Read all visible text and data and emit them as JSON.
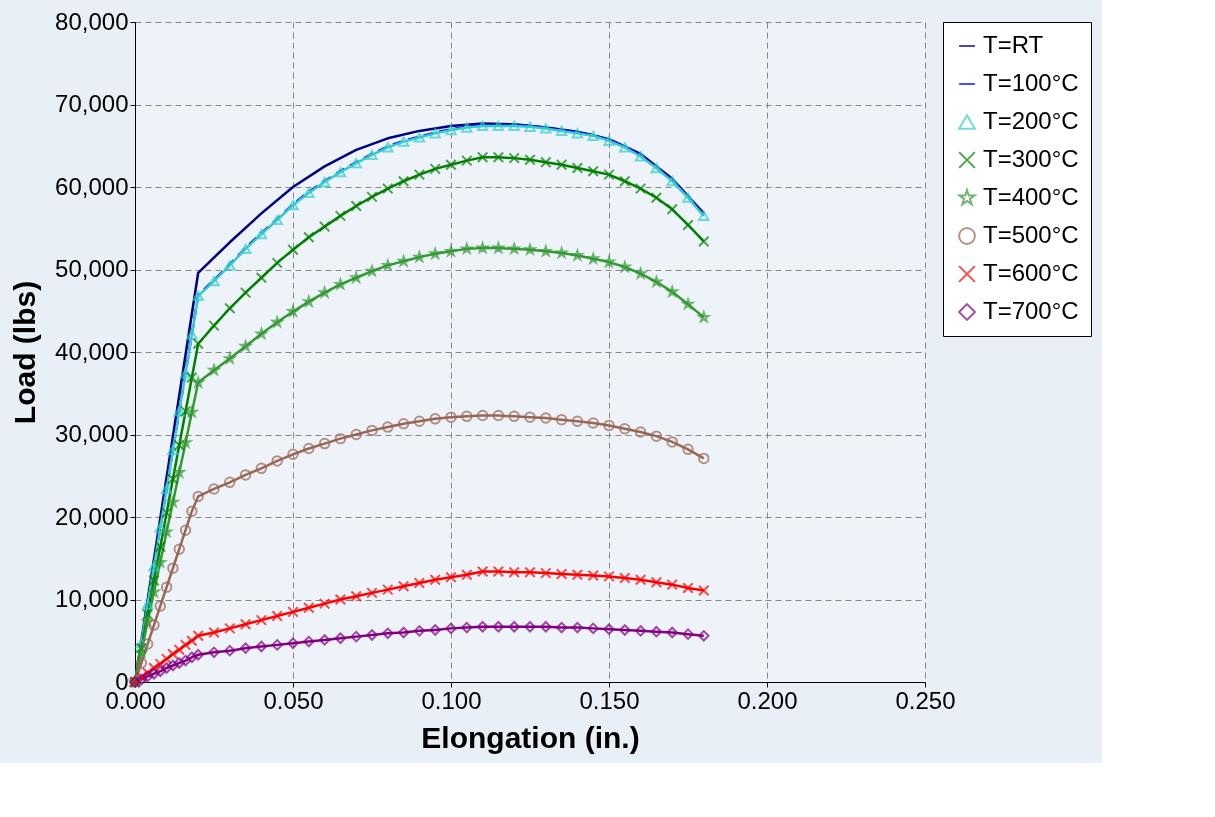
{
  "chart_data": {
    "type": "line",
    "xlabel": "Elongation (in.)",
    "ylabel": "Load (lbs)",
    "xlim": [
      0,
      0.25
    ],
    "ylim": [
      0,
      80000
    ],
    "xticks": [
      {
        "value": 0,
        "label": "0.000"
      },
      {
        "value": 0.05,
        "label": "0.050"
      },
      {
        "value": 0.1,
        "label": "0.100"
      },
      {
        "value": 0.15,
        "label": "0.150"
      },
      {
        "value": 0.2,
        "label": "0.200"
      },
      {
        "value": 0.25,
        "label": "0.250"
      }
    ],
    "yticks": [
      0,
      {
        "value": 10000,
        "label": "10,000"
      },
      {
        "value": 20000,
        "label": "20,000"
      },
      {
        "value": 30000,
        "label": "30,000"
      },
      {
        "value": 40000,
        "label": "40,000"
      },
      {
        "value": 50000,
        "label": "50,000"
      },
      {
        "value": 60000,
        "label": "60,000"
      },
      {
        "value": 70000,
        "label": "70,000"
      },
      {
        "value": 80000,
        "label": "80,000"
      }
    ],
    "grid": true,
    "legend": "right",
    "series": [
      {
        "name": "T=RT",
        "color": "#000080",
        "marker": "none",
        "line_style": "solid",
        "x": [
          0,
          0.02,
          0.03,
          0.04,
          0.05,
          0.06,
          0.07,
          0.08,
          0.09,
          0.1,
          0.11,
          0.12,
          0.13,
          0.14,
          0.15,
          0.16,
          0.17,
          0.18
        ],
        "values": [
          0,
          49600,
          53300,
          56800,
          60000,
          62500,
          64500,
          65900,
          66800,
          67400,
          67700,
          67600,
          67200,
          66700,
          65800,
          64000,
          61000,
          56800
        ]
      },
      {
        "name": "T=100°C",
        "color": "#0000ff",
        "marker": "none",
        "line_style": "dashed",
        "x": [
          0,
          0.02,
          0.025,
          0.03,
          0.035,
          0.04,
          0.045,
          0.05,
          0.055,
          0.06,
          0.065,
          0.07,
          0.075,
          0.08,
          0.085,
          0.09,
          0.095,
          0.1,
          0.105,
          0.11,
          0.115,
          0.12,
          0.125,
          0.13,
          0.135,
          0.14,
          0.145,
          0.15,
          0.155,
          0.16,
          0.165,
          0.17,
          0.175,
          0.18
        ],
        "values": [
          0,
          46900,
          48700,
          50600,
          52600,
          54400,
          56100,
          57900,
          59400,
          60700,
          61900,
          63000,
          64000,
          64900,
          65600,
          66100,
          66600,
          67000,
          67300,
          67500,
          67500,
          67500,
          67400,
          67200,
          66900,
          66600,
          66300,
          65700,
          64900,
          63800,
          62400,
          60800,
          58800,
          56600
        ]
      },
      {
        "name": "T=200°C",
        "color": "#33cccc",
        "marker": "triangle",
        "line_style": "solid",
        "x": [
          0,
          0.002,
          0.004,
          0.006,
          0.008,
          0.01,
          0.012,
          0.014,
          0.016,
          0.018,
          0.02,
          0.025,
          0.03,
          0.035,
          0.04,
          0.045,
          0.05,
          0.055,
          0.06,
          0.065,
          0.07,
          0.075,
          0.08,
          0.085,
          0.09,
          0.095,
          0.1,
          0.105,
          0.11,
          0.115,
          0.12,
          0.125,
          0.13,
          0.135,
          0.14,
          0.145,
          0.15,
          0.155,
          0.16,
          0.165,
          0.17,
          0.175,
          0.18
        ],
        "values": [
          0,
          4700,
          9400,
          14000,
          18700,
          23400,
          28100,
          32800,
          37400,
          42100,
          46800,
          48600,
          50500,
          52500,
          54300,
          56000,
          57800,
          59300,
          60600,
          61800,
          62900,
          63900,
          64800,
          65500,
          66000,
          66500,
          66900,
          67200,
          67400,
          67400,
          67400,
          67300,
          67100,
          66800,
          66500,
          66200,
          65600,
          64800,
          63700,
          62300,
          60700,
          58700,
          56500
        ]
      },
      {
        "name": "T=300°C",
        "color": "#008000",
        "marker": "cross",
        "line_style": "solid",
        "x": [
          0,
          0.002,
          0.004,
          0.006,
          0.008,
          0.01,
          0.012,
          0.014,
          0.016,
          0.018,
          0.02,
          0.025,
          0.03,
          0.035,
          0.04,
          0.045,
          0.05,
          0.055,
          0.06,
          0.065,
          0.07,
          0.075,
          0.08,
          0.085,
          0.09,
          0.095,
          0.1,
          0.105,
          0.11,
          0.115,
          0.12,
          0.125,
          0.13,
          0.135,
          0.14,
          0.145,
          0.15,
          0.155,
          0.16,
          0.165,
          0.17,
          0.175,
          0.18
        ],
        "values": [
          0,
          4100,
          8200,
          12300,
          16400,
          20500,
          24600,
          28700,
          32800,
          36900,
          41000,
          43200,
          45300,
          47200,
          49000,
          50800,
          52400,
          53900,
          55200,
          56500,
          57700,
          58800,
          59800,
          60700,
          61500,
          62200,
          62700,
          63200,
          63600,
          63600,
          63500,
          63300,
          63000,
          62700,
          62300,
          61900,
          61500,
          60700,
          59800,
          58700,
          57300,
          55400,
          53400
        ]
      },
      {
        "name": "T=400°C",
        "color": "#339933",
        "marker": "star",
        "line_style": "solid",
        "x": [
          0,
          0.002,
          0.004,
          0.006,
          0.008,
          0.01,
          0.012,
          0.014,
          0.016,
          0.018,
          0.02,
          0.025,
          0.03,
          0.035,
          0.04,
          0.045,
          0.05,
          0.055,
          0.06,
          0.065,
          0.07,
          0.075,
          0.08,
          0.085,
          0.09,
          0.095,
          0.1,
          0.105,
          0.11,
          0.115,
          0.12,
          0.125,
          0.13,
          0.135,
          0.14,
          0.145,
          0.15,
          0.155,
          0.16,
          0.165,
          0.17,
          0.175,
          0.18
        ],
        "values": [
          0,
          3600,
          7300,
          10900,
          14500,
          18200,
          21800,
          25400,
          29000,
          32700,
          36300,
          37800,
          39200,
          40700,
          42200,
          43600,
          44900,
          46100,
          47200,
          48200,
          49000,
          49800,
          50500,
          51000,
          51500,
          51900,
          52200,
          52500,
          52600,
          52600,
          52500,
          52400,
          52200,
          52000,
          51700,
          51300,
          50900,
          50300,
          49500,
          48500,
          47300,
          45800,
          44200
        ]
      },
      {
        "name": "T=500°C",
        "color": "#996655",
        "marker": "circle",
        "line_style": "solid",
        "x": [
          0,
          0.002,
          0.004,
          0.006,
          0.008,
          0.01,
          0.012,
          0.014,
          0.016,
          0.018,
          0.02,
          0.025,
          0.03,
          0.035,
          0.04,
          0.045,
          0.05,
          0.055,
          0.06,
          0.065,
          0.07,
          0.075,
          0.08,
          0.085,
          0.09,
          0.095,
          0.1,
          0.105,
          0.11,
          0.115,
          0.12,
          0.125,
          0.13,
          0.135,
          0.14,
          0.145,
          0.15,
          0.155,
          0.16,
          0.165,
          0.17,
          0.175,
          0.18
        ],
        "values": [
          0,
          2300,
          4600,
          6900,
          9200,
          11500,
          13800,
          16100,
          18400,
          20700,
          22500,
          23400,
          24200,
          25100,
          25900,
          26800,
          27600,
          28300,
          28900,
          29500,
          30000,
          30500,
          30900,
          31300,
          31600,
          31900,
          32100,
          32200,
          32300,
          32300,
          32200,
          32100,
          32000,
          31800,
          31600,
          31400,
          31100,
          30700,
          30300,
          29800,
          29100,
          28200,
          27100
        ]
      },
      {
        "name": "T=600°C",
        "color": "#ff0000",
        "marker": "cross",
        "line_style": "solid",
        "x": [
          0,
          0.002,
          0.004,
          0.006,
          0.008,
          0.01,
          0.012,
          0.014,
          0.016,
          0.018,
          0.02,
          0.025,
          0.03,
          0.035,
          0.04,
          0.045,
          0.05,
          0.055,
          0.06,
          0.065,
          0.07,
          0.075,
          0.08,
          0.085,
          0.09,
          0.095,
          0.1,
          0.105,
          0.11,
          0.115,
          0.12,
          0.125,
          0.13,
          0.135,
          0.14,
          0.145,
          0.15,
          0.155,
          0.16,
          0.165,
          0.17,
          0.175,
          0.18
        ],
        "values": [
          0,
          600,
          1100,
          1700,
          2200,
          2800,
          3400,
          3900,
          4500,
          5000,
          5600,
          6000,
          6500,
          7000,
          7500,
          8000,
          8500,
          9000,
          9500,
          10000,
          10400,
          10800,
          11200,
          11600,
          12000,
          12400,
          12700,
          13000,
          13400,
          13400,
          13300,
          13300,
          13200,
          13100,
          13000,
          12900,
          12800,
          12600,
          12400,
          12100,
          11800,
          11400,
          11100
        ]
      },
      {
        "name": "T=700°C",
        "color": "#800080",
        "marker": "diamond",
        "line_style": "solid",
        "x": [
          0,
          0.002,
          0.004,
          0.006,
          0.008,
          0.01,
          0.012,
          0.014,
          0.016,
          0.018,
          0.02,
          0.025,
          0.03,
          0.035,
          0.04,
          0.045,
          0.05,
          0.055,
          0.06,
          0.065,
          0.07,
          0.075,
          0.08,
          0.085,
          0.09,
          0.095,
          0.1,
          0.105,
          0.11,
          0.115,
          0.12,
          0.125,
          0.13,
          0.135,
          0.14,
          0.145,
          0.15,
          0.155,
          0.16,
          0.165,
          0.17,
          0.175,
          0.18
        ],
        "values": [
          0,
          300,
          700,
          1000,
          1300,
          1700,
          2000,
          2300,
          2600,
          3000,
          3300,
          3600,
          3800,
          4100,
          4300,
          4500,
          4700,
          4900,
          5100,
          5300,
          5500,
          5700,
          5900,
          6000,
          6200,
          6300,
          6500,
          6600,
          6700,
          6700,
          6700,
          6700,
          6700,
          6600,
          6600,
          6500,
          6400,
          6300,
          6200,
          6100,
          6000,
          5800,
          5600
        ]
      }
    ]
  }
}
